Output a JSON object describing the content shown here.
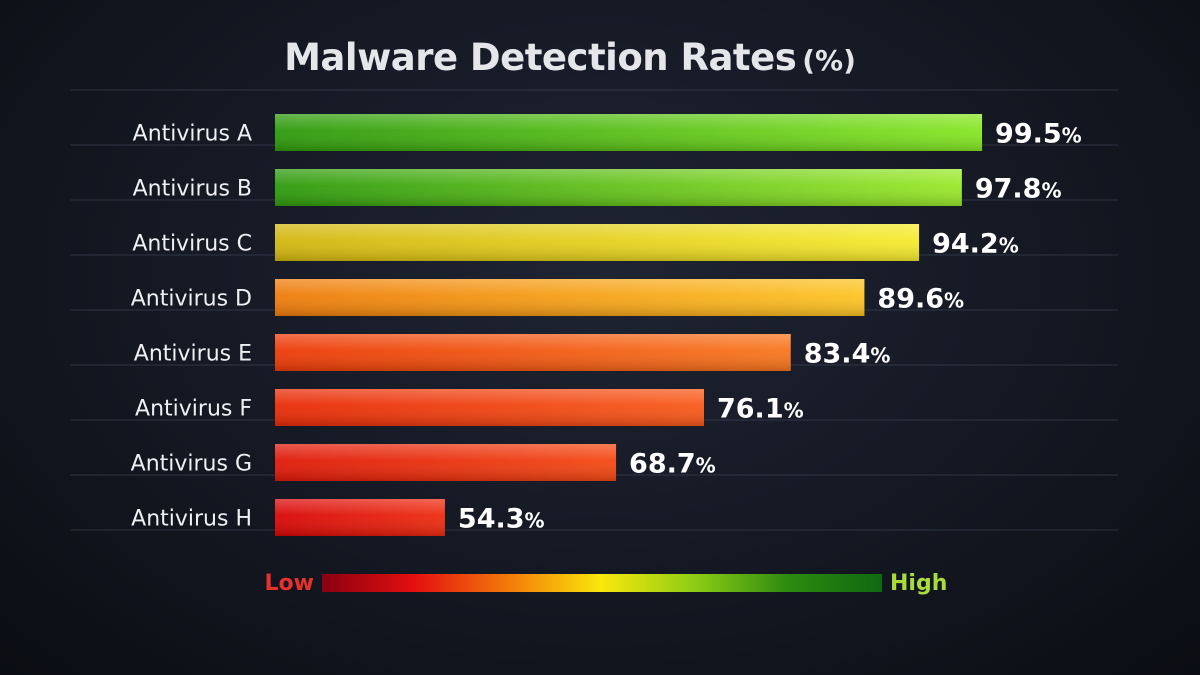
{
  "chart_data": {
    "type": "bar",
    "orientation": "horizontal",
    "title": "Malware Detection Rates",
    "title_unit": "(%)",
    "categories": [
      "Antivirus A",
      "Antivirus B",
      "Antivirus C",
      "Antivirus D",
      "Antivirus E",
      "Antivirus F",
      "Antivirus G",
      "Antivirus H"
    ],
    "values": [
      99.5,
      97.8,
      94.2,
      89.6,
      83.4,
      76.1,
      68.7,
      54.3
    ],
    "value_labels": [
      "99.5",
      "97.8",
      "94.2",
      "89.6",
      "83.4",
      "76.1",
      "68.7",
      "54.3"
    ],
    "value_suffix": "%",
    "xlim": [
      40,
      100
    ],
    "grid": true,
    "bar_colors": [
      [
        "#2d9a0c",
        "#86e624"
      ],
      [
        "#2d9a0c",
        "#9ae82a"
      ],
      [
        "#d2b60e",
        "#f6ea2e"
      ],
      [
        "#ee7b0a",
        "#fcc424"
      ],
      [
        "#ec3a06",
        "#f8761e"
      ],
      [
        "#e82a06",
        "#f85a1a"
      ],
      [
        "#e01808",
        "#f44a14"
      ],
      [
        "#d80606",
        "#ee2c10"
      ]
    ],
    "legend": {
      "low_label": "Low",
      "high_label": "High",
      "low_color": "#e8302c",
      "high_color": "#a8dc3c",
      "gradient": [
        "#8a0010",
        "#e41010",
        "#f47a0a",
        "#f8e80c",
        "#8ccc14",
        "#2c8a10",
        "#0e6a10"
      ],
      "placement": "bottom-center"
    }
  }
}
